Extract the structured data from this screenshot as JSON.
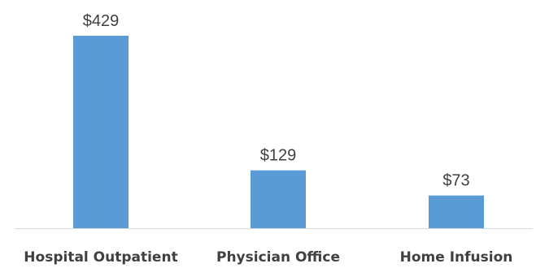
{
  "chart_data": {
    "type": "bar",
    "categories": [
      "Hospital Outpatient",
      "Physician Office",
      "Home Infusion"
    ],
    "values": [
      429,
      129,
      73
    ],
    "data_labels": [
      "$429",
      "$129",
      "$73"
    ],
    "title": "",
    "xlabel": "",
    "ylabel": "",
    "ylim": [
      0,
      429
    ],
    "grid": false,
    "legend": "none",
    "bar_color": "#5b9bd5",
    "axis_color": "#d9d9d9",
    "text_color": "#404040"
  }
}
